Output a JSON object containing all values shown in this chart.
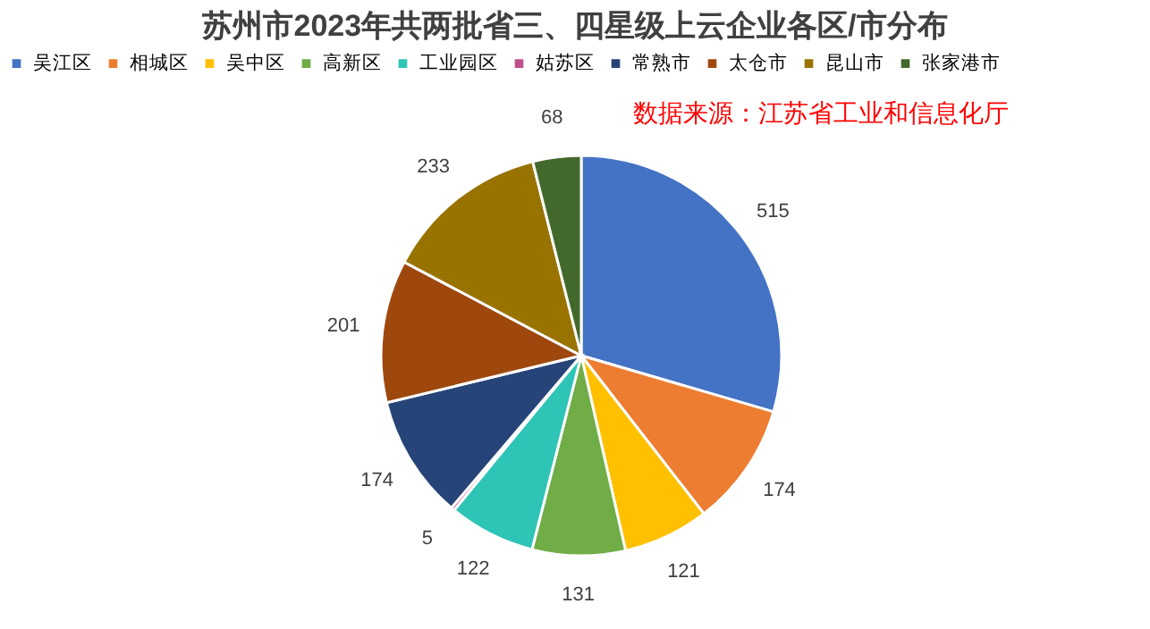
{
  "chart_data": {
    "type": "pie",
    "title": "苏州市2023年共两批省三、四星级上云企业各区/市分布",
    "categories": [
      "吴江区",
      "相城区",
      "吴中区",
      "高新区",
      "工业园区",
      "姑苏区",
      "常熟市",
      "太仓市",
      "昆山市",
      "张家港市"
    ],
    "values": [
      515,
      174,
      121,
      131,
      122,
      5,
      174,
      201,
      233,
      68
    ],
    "colors": [
      "#4472c4",
      "#ed7d31",
      "#ffc000",
      "#70ad47",
      "#2ec4b6",
      "#c0508c",
      "#264478",
      "#9e480e",
      "#997300",
      "#43682b"
    ],
    "data_labels": true,
    "legend": "top",
    "annotations": [
      "数据来源：江苏省工业和信息化厅"
    ]
  }
}
